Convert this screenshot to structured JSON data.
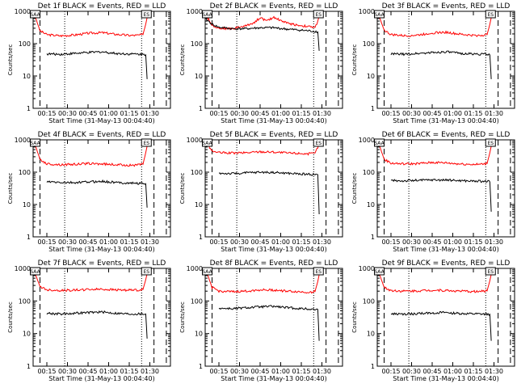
{
  "figure": {
    "x_tick_labels": [
      "00:15",
      "00:30",
      "00:45",
      "01:00",
      "01:15",
      "01:30"
    ],
    "y_tick_labels": [
      "1",
      "10",
      "100",
      "1000"
    ]
  },
  "chart_data": [
    {
      "type": "line",
      "title": "Det 1f BLACK = Events, RED = LLD",
      "xlabel": "Start Time (31-May-13 00:04:40)",
      "ylabel": "Counts/sec",
      "yscale": "log",
      "ylim": [
        1,
        1000
      ],
      "x_unit": "minutes after 00:04:40",
      "xlim": [
        0,
        100
      ],
      "markers": [
        "SAA",
        "ES"
      ],
      "series": [
        {
          "name": "RED = LLD",
          "color": "#ff0000",
          "x": [
            0,
            2,
            5,
            10,
            20,
            30,
            40,
            50,
            60,
            70,
            75,
            80,
            82,
            84
          ],
          "y": [
            1000,
            600,
            250,
            190,
            175,
            185,
            210,
            220,
            195,
            180,
            180,
            190,
            400,
            1000
          ]
        },
        {
          "name": "BLACK = Events",
          "color": "#000000",
          "x": [
            10,
            20,
            30,
            40,
            50,
            60,
            70,
            80,
            82,
            83
          ],
          "y": [
            48,
            47,
            50,
            53,
            56,
            50,
            48,
            47,
            45,
            8
          ]
        }
      ]
    },
    {
      "type": "line",
      "title": "Det 2f BLACK = Events, RED = LLD",
      "xlabel": "Start Time (31-May-13 00:04:40)",
      "ylabel": "Counts/sec",
      "yscale": "log",
      "ylim": [
        1,
        1000
      ],
      "x_unit": "minutes after 00:04:40",
      "xlim": [
        0,
        100
      ],
      "markers": [
        "SAA",
        "ES"
      ],
      "series": [
        {
          "name": "RED = LLD",
          "color": "#ff0000",
          "x": [
            0,
            2,
            5,
            10,
            20,
            30,
            36,
            40,
            45,
            50,
            55,
            60,
            65,
            70,
            75,
            80,
            82,
            84
          ],
          "y": [
            1000,
            600,
            380,
            300,
            290,
            360,
            460,
            640,
            500,
            660,
            520,
            430,
            390,
            360,
            340,
            310,
            500,
            1000
          ]
        },
        {
          "name": "BLACK = Events",
          "color": "#000000",
          "x": [
            0,
            5,
            10,
            20,
            30,
            40,
            50,
            60,
            70,
            80,
            82,
            83
          ],
          "y": [
            600,
            400,
            320,
            290,
            290,
            310,
            310,
            280,
            260,
            240,
            230,
            60
          ]
        }
      ]
    },
    {
      "type": "line",
      "title": "Det 3f BLACK = Events, RED = LLD",
      "xlabel": "Start Time (31-May-13 00:04:40)",
      "ylabel": "Counts/sec",
      "yscale": "log",
      "ylim": [
        1,
        1000
      ],
      "x_unit": "minutes after 00:04:40",
      "xlim": [
        0,
        100
      ],
      "markers": [
        "SAA",
        "ES"
      ],
      "series": [
        {
          "name": "RED = LLD",
          "color": "#ff0000",
          "x": [
            0,
            2,
            5,
            10,
            20,
            30,
            40,
            50,
            60,
            70,
            75,
            80,
            82,
            84
          ],
          "y": [
            1000,
            600,
            260,
            190,
            175,
            185,
            215,
            225,
            195,
            180,
            180,
            190,
            400,
            1000
          ]
        },
        {
          "name": "BLACK = Events",
          "color": "#000000",
          "x": [
            10,
            20,
            30,
            40,
            50,
            60,
            70,
            80,
            82,
            83
          ],
          "y": [
            48,
            47,
            50,
            53,
            56,
            50,
            48,
            47,
            45,
            8
          ]
        }
      ]
    },
    {
      "type": "line",
      "title": "Det 4f BLACK = Events, RED = LLD",
      "xlabel": "Start Time (31-May-13 00:04:40)",
      "ylabel": "Counts/sec",
      "yscale": "log",
      "ylim": [
        1,
        1000
      ],
      "x_unit": "minutes after 00:04:40",
      "xlim": [
        0,
        100
      ],
      "markers": [
        "SAA",
        "ES"
      ],
      "series": [
        {
          "name": "RED = LLD",
          "color": "#ff0000",
          "x": [
            0,
            2,
            5,
            10,
            20,
            30,
            40,
            50,
            60,
            70,
            75,
            80,
            82,
            84
          ],
          "y": [
            1000,
            600,
            250,
            180,
            170,
            175,
            185,
            180,
            170,
            165,
            165,
            175,
            400,
            1000
          ]
        },
        {
          "name": "BLACK = Events",
          "color": "#000000",
          "x": [
            10,
            20,
            30,
            40,
            50,
            60,
            70,
            80,
            82,
            83
          ],
          "y": [
            50,
            48,
            47,
            50,
            52,
            48,
            46,
            45,
            44,
            8
          ]
        }
      ]
    },
    {
      "type": "line",
      "title": "Det 5f BLACK = Events, RED = LLD",
      "xlabel": "Start Time (31-May-13 00:04:40)",
      "ylabel": "Counts/sec",
      "yscale": "log",
      "ylim": [
        1,
        1000
      ],
      "x_unit": "minutes after 00:04:40",
      "xlim": [
        0,
        100
      ],
      "markers": [
        "SAA",
        "ES"
      ],
      "series": [
        {
          "name": "RED = LLD",
          "color": "#ff0000",
          "x": [
            0,
            2,
            5,
            10,
            20,
            30,
            40,
            50,
            60,
            70,
            75,
            80,
            82,
            84
          ],
          "y": [
            1000,
            700,
            450,
            400,
            390,
            400,
            430,
            420,
            390,
            380,
            370,
            380,
            600,
            1000
          ]
        },
        {
          "name": "BLACK = Events",
          "color": "#000000",
          "x": [
            10,
            20,
            30,
            40,
            50,
            60,
            70,
            80,
            82,
            83
          ],
          "y": [
            92,
            90,
            95,
            100,
            98,
            92,
            88,
            85,
            84,
            5
          ]
        }
      ]
    },
    {
      "type": "line",
      "title": "Det 6f BLACK = Events, RED = LLD",
      "xlabel": "Start Time (31-May-13 00:04:40)",
      "ylabel": "Counts/sec",
      "yscale": "log",
      "ylim": [
        1,
        1000
      ],
      "x_unit": "minutes after 00:04:40",
      "xlim": [
        0,
        100
      ],
      "markers": [
        "SAA",
        "ES"
      ],
      "series": [
        {
          "name": "RED = LLD",
          "color": "#ff0000",
          "x": [
            0,
            2,
            5,
            10,
            20,
            30,
            40,
            50,
            60,
            70,
            75,
            80,
            82,
            84
          ],
          "y": [
            1000,
            600,
            250,
            190,
            180,
            185,
            200,
            195,
            180,
            175,
            175,
            185,
            400,
            1000
          ]
        },
        {
          "name": "BLACK = Events",
          "color": "#000000",
          "x": [
            10,
            20,
            30,
            40,
            50,
            60,
            70,
            80,
            82,
            83
          ],
          "y": [
            55,
            54,
            56,
            58,
            57,
            55,
            53,
            52,
            50,
            6
          ]
        }
      ]
    },
    {
      "type": "line",
      "title": "Det 7f BLACK = Events, RED = LLD",
      "xlabel": "Start Time (31-May-13 00:04:40)",
      "ylabel": "Counts/sec",
      "yscale": "log",
      "ylim": [
        1,
        1000
      ],
      "x_unit": "minutes after 00:04:40",
      "xlim": [
        0,
        100
      ],
      "markers": [
        "SAA",
        "ES"
      ],
      "series": [
        {
          "name": "RED = LLD",
          "color": "#ff0000",
          "x": [
            0,
            2,
            5,
            10,
            20,
            30,
            40,
            50,
            60,
            70,
            75,
            80,
            82,
            84
          ],
          "y": [
            1000,
            600,
            280,
            220,
            210,
            215,
            225,
            230,
            220,
            215,
            215,
            225,
            450,
            1000
          ]
        },
        {
          "name": "BLACK = Events",
          "color": "#000000",
          "x": [
            10,
            20,
            30,
            40,
            50,
            60,
            70,
            80,
            82,
            83
          ],
          "y": [
            42,
            40,
            42,
            44,
            46,
            42,
            40,
            40,
            40,
            7
          ]
        }
      ]
    },
    {
      "type": "line",
      "title": "Det 8f BLACK = Events, RED = LLD",
      "xlabel": "Start Time (31-May-13 00:04:40)",
      "ylabel": "Counts/sec",
      "yscale": "log",
      "ylim": [
        1,
        1000
      ],
      "x_unit": "minutes after 00:04:40",
      "xlim": [
        0,
        100
      ],
      "markers": [
        "SAA",
        "ES"
      ],
      "series": [
        {
          "name": "RED = LLD",
          "color": "#ff0000",
          "x": [
            0,
            2,
            5,
            10,
            20,
            30,
            40,
            50,
            60,
            70,
            75,
            80,
            82,
            84
          ],
          "y": [
            1000,
            600,
            260,
            200,
            190,
            200,
            220,
            215,
            200,
            190,
            185,
            195,
            400,
            1000
          ]
        },
        {
          "name": "BLACK = Events",
          "color": "#000000",
          "x": [
            10,
            20,
            30,
            40,
            50,
            60,
            70,
            80,
            82,
            83
          ],
          "y": [
            60,
            58,
            62,
            66,
            68,
            62,
            58,
            55,
            55,
            6
          ]
        }
      ]
    },
    {
      "type": "line",
      "title": "Det 9f BLACK = Events, RED = LLD",
      "xlabel": "Start Time (31-May-13 00:04:40)",
      "ylabel": "Counts/sec",
      "yscale": "log",
      "ylim": [
        1,
        1000
      ],
      "x_unit": "minutes after 00:04:40",
      "xlim": [
        0,
        100
      ],
      "markers": [
        "SAA",
        "ES"
      ],
      "series": [
        {
          "name": "RED = LLD",
          "color": "#ff0000",
          "x": [
            0,
            2,
            5,
            10,
            20,
            30,
            40,
            50,
            60,
            70,
            75,
            80,
            82,
            84
          ],
          "y": [
            1000,
            600,
            260,
            210,
            200,
            205,
            215,
            210,
            200,
            195,
            195,
            205,
            420,
            1000
          ]
        },
        {
          "name": "BLACK = Events",
          "color": "#000000",
          "x": [
            10,
            20,
            30,
            40,
            50,
            60,
            70,
            80,
            82,
            83
          ],
          "y": [
            40,
            39,
            41,
            43,
            44,
            41,
            40,
            39,
            39,
            6
          ]
        }
      ]
    }
  ]
}
